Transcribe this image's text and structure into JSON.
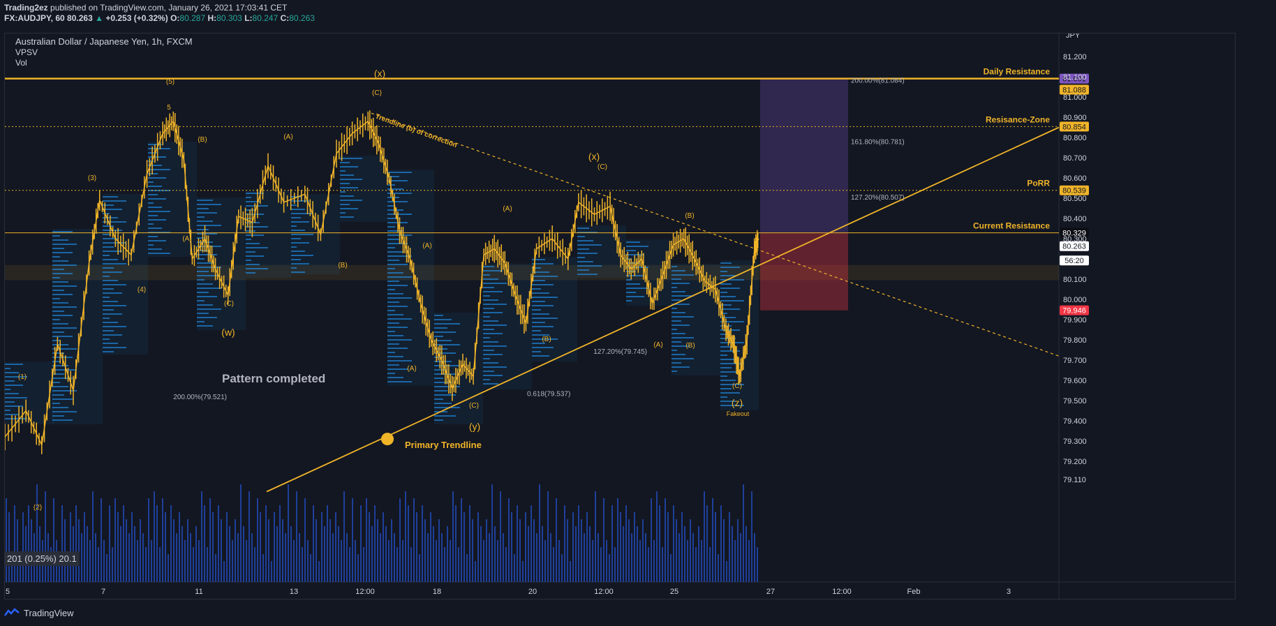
{
  "header": {
    "publisher": "Trading2ez",
    "published_text": "published on TradingView.com, January 26, 2021 17:03:41 CET",
    "symbol": "FX:AUDJPY, 60",
    "last": "80.263",
    "change": "+0.253 (+0.32%)",
    "o_label": "O:",
    "o": "80.287",
    "h_label": "H:",
    "h": "80.303",
    "l_label": "L:",
    "l": "80.247",
    "c_label": "C:",
    "c": "80.263"
  },
  "legend": {
    "title": "Australian Dollar / Japanese Yen, 1h, FXCM",
    "ind1": "VPSV",
    "ind2": "Vol"
  },
  "footer": {
    "brand": "TradingView"
  },
  "vol_readout": "201 (0.25%) 20.1",
  "colors": {
    "bg": "#131722",
    "accent": "#f0b429",
    "candle": "#f0b429",
    "volume": "#2962ff",
    "vpsv": "#2196f3",
    "red": "#f23645"
  },
  "chart_data": {
    "type": "line",
    "title": "Australian Dollar / Japanese Yen, 1h, FXCM",
    "currency": "JPY",
    "ylim": [
      79.05,
      81.33
    ],
    "y_ticks": [
      "81.200",
      "81.100",
      "81.000",
      "80.900",
      "80.800",
      "80.700",
      "80.600",
      "80.500",
      "80.400",
      "80.300",
      "80.200",
      "80.100",
      "80.000",
      "79.900",
      "79.800",
      "79.700",
      "79.600",
      "79.500",
      "79.400",
      "79.300",
      "79.200",
      "79.110"
    ],
    "x_ticks": [
      "5",
      "7",
      "11",
      "13",
      "12:00",
      "18",
      "20",
      "12:00",
      "25",
      "27",
      "12:00",
      "Feb",
      "3"
    ],
    "price_path": [
      {
        "t": 0.0,
        "p": 79.32
      },
      {
        "t": 0.02,
        "p": 79.45
      },
      {
        "t": 0.035,
        "p": 79.28
      },
      {
        "t": 0.05,
        "p": 79.78
      },
      {
        "t": 0.065,
        "p": 79.55
      },
      {
        "t": 0.08,
        "p": 80.18
      },
      {
        "t": 0.09,
        "p": 80.49
      },
      {
        "t": 0.105,
        "p": 80.3
      },
      {
        "t": 0.12,
        "p": 80.22
      },
      {
        "t": 0.135,
        "p": 80.62
      },
      {
        "t": 0.15,
        "p": 80.82
      },
      {
        "t": 0.16,
        "p": 80.88
      },
      {
        "t": 0.17,
        "p": 80.69
      },
      {
        "t": 0.178,
        "p": 80.2
      },
      {
        "t": 0.19,
        "p": 80.3
      },
      {
        "t": 0.2,
        "p": 80.15
      },
      {
        "t": 0.212,
        "p": 80.02
      },
      {
        "t": 0.222,
        "p": 80.41
      },
      {
        "t": 0.235,
        "p": 80.38
      },
      {
        "t": 0.25,
        "p": 80.66
      },
      {
        "t": 0.265,
        "p": 80.48
      },
      {
        "t": 0.285,
        "p": 80.52
      },
      {
        "t": 0.3,
        "p": 80.32
      },
      {
        "t": 0.315,
        "p": 80.72
      },
      {
        "t": 0.33,
        "p": 80.82
      },
      {
        "t": 0.345,
        "p": 80.88
      },
      {
        "t": 0.355,
        "p": 80.77
      },
      {
        "t": 0.365,
        "p": 80.6
      },
      {
        "t": 0.375,
        "p": 80.34
      },
      {
        "t": 0.385,
        "p": 80.2
      },
      {
        "t": 0.395,
        "p": 79.98
      },
      {
        "t": 0.405,
        "p": 79.8
      },
      {
        "t": 0.415,
        "p": 79.7
      },
      {
        "t": 0.425,
        "p": 79.56
      },
      {
        "t": 0.435,
        "p": 79.68
      },
      {
        "t": 0.445,
        "p": 79.62
      },
      {
        "t": 0.455,
        "p": 80.22
      },
      {
        "t": 0.465,
        "p": 80.25
      },
      {
        "t": 0.475,
        "p": 80.18
      },
      {
        "t": 0.485,
        "p": 80.02
      },
      {
        "t": 0.495,
        "p": 79.88
      },
      {
        "t": 0.505,
        "p": 80.25
      },
      {
        "t": 0.52,
        "p": 80.3
      },
      {
        "t": 0.535,
        "p": 80.2
      },
      {
        "t": 0.545,
        "p": 80.48
      },
      {
        "t": 0.56,
        "p": 80.42
      },
      {
        "t": 0.575,
        "p": 80.46
      },
      {
        "t": 0.585,
        "p": 80.22
      },
      {
        "t": 0.595,
        "p": 80.15
      },
      {
        "t": 0.605,
        "p": 80.2
      },
      {
        "t": 0.615,
        "p": 79.98
      },
      {
        "t": 0.625,
        "p": 80.12
      },
      {
        "t": 0.635,
        "p": 80.27
      },
      {
        "t": 0.645,
        "p": 80.3
      },
      {
        "t": 0.655,
        "p": 80.2
      },
      {
        "t": 0.665,
        "p": 80.09
      },
      {
        "t": 0.675,
        "p": 80.05
      },
      {
        "t": 0.685,
        "p": 79.85
      },
      {
        "t": 0.692,
        "p": 79.78
      },
      {
        "t": 0.698,
        "p": 79.62
      },
      {
        "t": 0.705,
        "p": 79.8
      },
      {
        "t": 0.712,
        "p": 80.24
      },
      {
        "t": 0.716,
        "p": 80.3
      }
    ],
    "horizontal_levels": [
      {
        "label": "Daily Resistance",
        "price": 81.091,
        "tag": "81.091",
        "tag_color": "#7e57c2"
      },
      {
        "label": "",
        "price": 81.088,
        "tag": "81.088",
        "tag_color": "#f0b429"
      },
      {
        "label": "Resisance-Zone",
        "price": 80.854,
        "tag": "80.854",
        "tag_color": "#f0b429"
      },
      {
        "label": "PoRR",
        "price": 80.539,
        "tag": "80.539",
        "tag_color": "#f0b429"
      },
      {
        "label": "Current Resistance",
        "price": 80.329,
        "tag": "80.329",
        "tag_color": "#0c0e14"
      }
    ],
    "price_tags": [
      {
        "price": 80.263,
        "text": "80.263",
        "color": "#ffffff",
        "fg": "#131722"
      },
      {
        "price": 80.22,
        "text": "56:20",
        "color": "#ffffff",
        "fg": "#131722"
      },
      {
        "price": 79.946,
        "text": "79.946",
        "color": "#f23645",
        "fg": "#ffffff"
      }
    ],
    "fib_labels": [
      {
        "text": "200.00%(81.084)",
        "price": 81.084
      },
      {
        "text": "161.80%(80.781)",
        "price": 80.781
      },
      {
        "text": "127.20%(80.507)",
        "price": 80.507
      },
      {
        "text": "127.20%(79.745)",
        "price": 79.745
      },
      {
        "text": "200.00%(79.521)",
        "price": 79.521
      },
      {
        "text": "0.618(79.537)",
        "price": 79.537
      }
    ],
    "wave_labels": [
      "(x)",
      "(C)",
      "(5)",
      "5",
      "(B)",
      "(3)",
      "(A)",
      "(4)",
      "(A)",
      "(C)",
      "(w)",
      "(1)",
      "(2)",
      "(B)",
      "(A)",
      "(B)",
      "(A)",
      "(C)",
      "(y)",
      "(A)",
      "(x)",
      "(C)",
      "(B)",
      "(B)",
      "(A)",
      "(C)",
      "(z)"
    ],
    "annotations": {
      "pattern": "Pattern completed",
      "primary": "Primary Trendline",
      "trendline_b": "Trendline (b) of correction",
      "fakeout": "Fakeout"
    }
  }
}
